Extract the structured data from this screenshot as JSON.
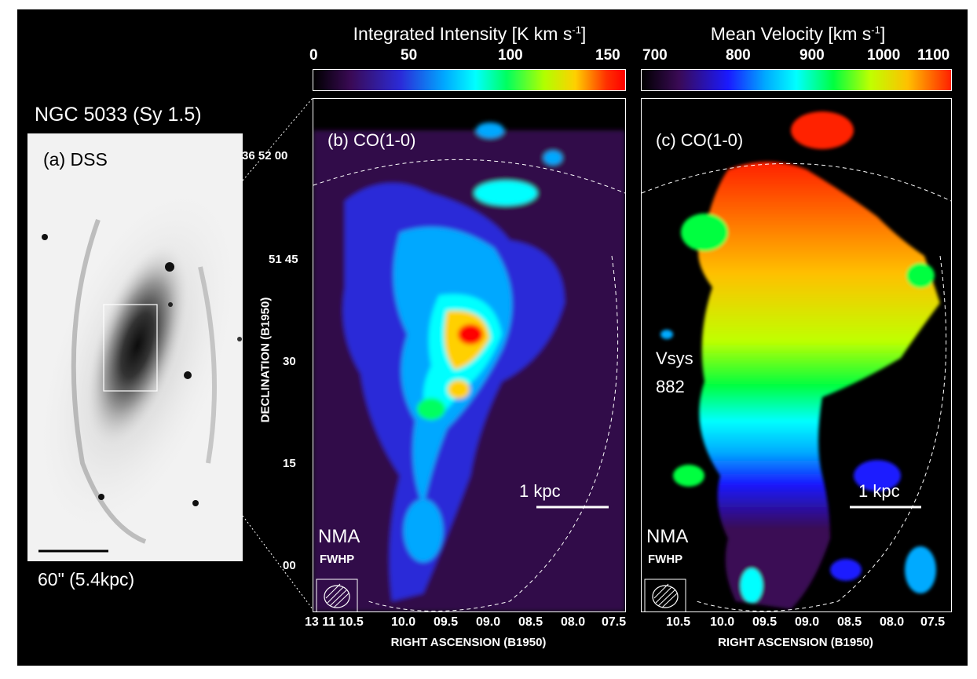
{
  "panel_a": {
    "object_title": "NGC 5033 (Sy 1.5)",
    "label": "(a) DSS",
    "scalebar_label": "60\" (5.4kpc)"
  },
  "panel_b": {
    "colorbar_title": "Integrated Intensity [K km s",
    "colorbar_unit_sup": "-1",
    "colorbar_unit_close": "]",
    "colorbar_ticks": [
      "0",
      "50",
      "100",
      "150"
    ],
    "label": "(b) CO(1-0)",
    "scalebar_label": "1 kpc",
    "telescope": "NMA",
    "beam_label": "FWHP"
  },
  "panel_c": {
    "colorbar_title": "Mean Velocity [km s",
    "colorbar_unit_sup": "-1",
    "colorbar_unit_close": "]",
    "colorbar_ticks": [
      "700",
      "800",
      "900",
      "1000",
      "1100"
    ],
    "label": "(c) CO(1-0)",
    "vsys_label": "Vsys",
    "vsys_value": "882",
    "scalebar_label": "1 kpc",
    "telescope": "NMA",
    "beam_label": "FWHP"
  },
  "axes": {
    "dec_ticks": [
      "36 52 00",
      "51 45",
      "30",
      "15",
      "00"
    ],
    "dec_label": "DECLINATION (B1950)",
    "ra_ticks_b": [
      "13 11 10.5",
      "10.0",
      "09.5",
      "09.0",
      "08.5",
      "08.0",
      "07.5"
    ],
    "ra_ticks_c": [
      "10.5",
      "10.0",
      "09.5",
      "09.0",
      "08.5",
      "08.0",
      "07.5"
    ],
    "ra_label": "RIGHT ASCENSION (B1950)"
  },
  "colors": {
    "background": "#000000",
    "foreground": "#ffffff",
    "intensity_cmap": [
      "#000000",
      "#3a0a55",
      "#2b2bd8",
      "#00a8ff",
      "#00ffff",
      "#00ff60",
      "#b0ff00",
      "#ffd000",
      "#ff3000",
      "#ff0000"
    ],
    "velocity_cmap": [
      "#000000",
      "#3a0a55",
      "#1a1aff",
      "#00aaff",
      "#00ffff",
      "#00ff40",
      "#c0ff00",
      "#ffc000",
      "#ff2000"
    ]
  }
}
